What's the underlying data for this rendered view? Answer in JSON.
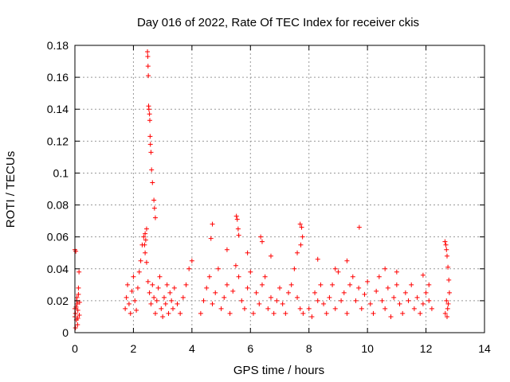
{
  "chart_data": {
    "type": "scatter",
    "title": "Day 016 of 2022, Rate Of TEC Index for receiver ckis",
    "xlabel": "GPS time / hours",
    "ylabel": "ROTI / TECUs",
    "xlim": [
      0,
      14
    ],
    "ylim": [
      0,
      0.18
    ],
    "x_ticks": [
      "0",
      "2",
      "4",
      "6",
      "8",
      "10",
      "12",
      "14"
    ],
    "y_ticks": [
      "0",
      "0.02",
      "0.04",
      "0.06",
      "0.08",
      "0.1",
      "0.12",
      "0.14",
      "0.16",
      "0.18"
    ],
    "grid": true,
    "marker": "+",
    "color": "#ff0000",
    "series": [
      {
        "x": [
          0.0,
          0.02,
          0.05,
          0.08,
          0.1,
          0.12,
          0.15,
          0.0,
          0.03,
          0.06,
          0.09,
          0.12,
          0.04,
          0.1,
          0.14,
          0.02,
          0.16,
          0.0,
          0.07,
          1.72,
          1.76,
          1.8,
          1.85,
          1.9,
          1.95,
          2.0,
          2.05,
          2.1,
          2.15,
          2.2,
          2.25,
          2.3,
          2.35,
          2.4,
          2.45,
          2.5,
          2.55,
          2.6,
          2.65,
          2.7,
          2.75,
          2.8,
          2.85,
          2.9,
          2.95,
          3.0,
          3.05,
          3.1,
          3.15,
          3.2,
          3.25,
          3.3,
          3.35,
          3.4,
          3.5,
          3.6,
          3.7,
          3.8,
          3.9,
          4.0,
          2.48,
          2.49,
          2.5,
          2.51,
          2.52,
          2.53,
          2.55,
          2.56,
          2.57,
          2.58,
          2.6,
          2.62,
          2.65,
          2.7,
          2.72,
          2.75,
          2.45,
          2.4,
          2.42,
          2.38,
          4.3,
          4.4,
          4.5,
          4.6,
          4.7,
          4.8,
          4.9,
          5.0,
          5.1,
          5.2,
          5.3,
          5.4,
          5.5,
          5.6,
          5.7,
          5.8,
          5.9,
          6.0,
          6.1,
          6.2,
          6.3,
          6.4,
          6.5,
          6.6,
          6.7,
          6.8,
          6.9,
          7.0,
          7.1,
          7.2,
          7.3,
          7.4,
          7.5,
          7.6,
          7.7,
          7.8,
          4.7,
          5.52,
          5.55,
          5.58,
          5.6,
          6.35,
          6.4,
          6.7,
          7.6,
          7.7,
          7.75,
          7.78,
          7.72,
          4.65,
          5.2,
          5.9,
          8.0,
          8.1,
          8.2,
          8.3,
          8.4,
          8.5,
          8.6,
          8.7,
          8.8,
          8.9,
          9.0,
          9.1,
          9.2,
          9.3,
          9.4,
          9.5,
          9.6,
          9.7,
          9.8,
          9.9,
          10.0,
          10.1,
          10.2,
          10.3,
          10.4,
          10.5,
          10.6,
          10.7,
          10.8,
          10.9,
          11.0,
          11.1,
          11.2,
          11.3,
          11.4,
          11.5,
          11.6,
          11.7,
          11.8,
          11.9,
          12.0,
          12.1,
          12.2,
          9.72,
          9.3,
          8.3,
          8.9,
          10.6,
          11.0,
          11.9,
          12.1,
          12.65,
          12.68,
          12.7,
          12.72,
          12.75,
          12.78,
          12.8,
          12.7,
          12.74,
          12.66,
          12.72,
          12.76
        ],
        "y": [
          0.015,
          0.012,
          0.008,
          0.018,
          0.014,
          0.024,
          0.011,
          0.052,
          0.051,
          0.02,
          0.005,
          0.028,
          0.016,
          0.009,
          0.038,
          0.003,
          0.019,
          0.01,
          0.022,
          0.015,
          0.022,
          0.03,
          0.018,
          0.012,
          0.026,
          0.035,
          0.02,
          0.014,
          0.028,
          0.038,
          0.045,
          0.055,
          0.06,
          0.05,
          0.044,
          0.032,
          0.025,
          0.018,
          0.03,
          0.022,
          0.012,
          0.02,
          0.028,
          0.035,
          0.015,
          0.01,
          0.022,
          0.018,
          0.03,
          0.012,
          0.025,
          0.02,
          0.015,
          0.028,
          0.018,
          0.012,
          0.022,
          0.03,
          0.04,
          0.045,
          0.176,
          0.173,
          0.167,
          0.161,
          0.142,
          0.14,
          0.137,
          0.133,
          0.123,
          0.118,
          0.113,
          0.102,
          0.094,
          0.083,
          0.078,
          0.072,
          0.065,
          0.062,
          0.058,
          0.055,
          0.012,
          0.02,
          0.028,
          0.035,
          0.018,
          0.025,
          0.04,
          0.015,
          0.022,
          0.03,
          0.012,
          0.026,
          0.042,
          0.035,
          0.02,
          0.015,
          0.028,
          0.038,
          0.012,
          0.025,
          0.018,
          0.03,
          0.035,
          0.015,
          0.022,
          0.012,
          0.02,
          0.028,
          0.018,
          0.012,
          0.025,
          0.03,
          0.04,
          0.022,
          0.015,
          0.012,
          0.068,
          0.073,
          0.071,
          0.065,
          0.061,
          0.06,
          0.057,
          0.048,
          0.05,
          0.068,
          0.066,
          0.06,
          0.055,
          0.059,
          0.052,
          0.05,
          0.015,
          0.01,
          0.025,
          0.02,
          0.03,
          0.018,
          0.012,
          0.022,
          0.03,
          0.015,
          0.038,
          0.02,
          0.025,
          0.012,
          0.03,
          0.035,
          0.02,
          0.028,
          0.015,
          0.024,
          0.032,
          0.018,
          0.012,
          0.026,
          0.035,
          0.02,
          0.015,
          0.028,
          0.01,
          0.022,
          0.03,
          0.018,
          0.012,
          0.025,
          0.02,
          0.03,
          0.015,
          0.022,
          0.012,
          0.018,
          0.025,
          0.02,
          0.015,
          0.066,
          0.045,
          0.046,
          0.04,
          0.04,
          0.038,
          0.036,
          0.03,
          0.057,
          0.055,
          0.052,
          0.048,
          0.041,
          0.033,
          0.025,
          0.02,
          0.015,
          0.012,
          0.01,
          0.018
        ]
      }
    ]
  }
}
